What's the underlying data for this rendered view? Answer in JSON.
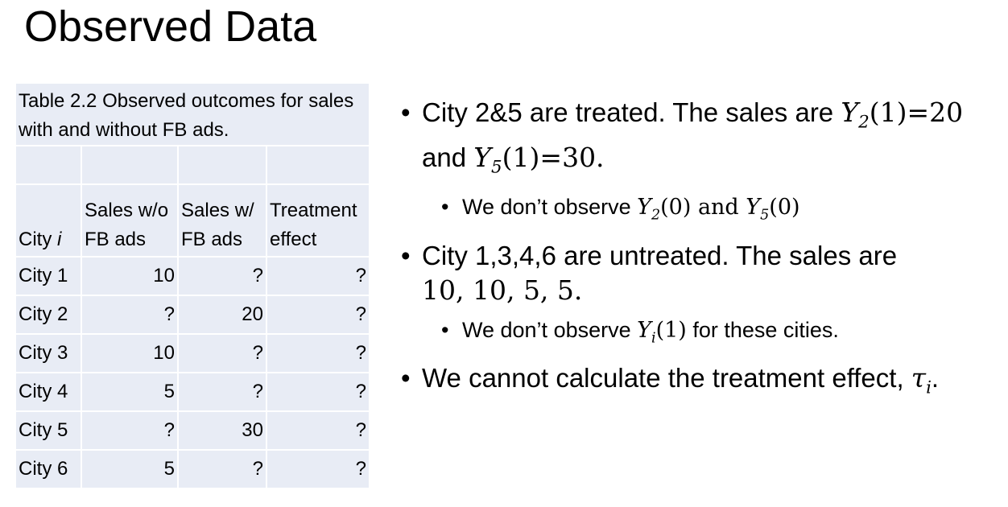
{
  "title": "Observed Data",
  "table": {
    "caption": "Table 2.2 Observed outcomes for sales with and without FB ads.",
    "header": {
      "city_label": "City",
      "city_index": "i",
      "col2": "Sales w/o FB ads",
      "col3": "Sales w/ FB ads",
      "col4": "Treatment effect"
    },
    "rows": [
      {
        "city": "City 1",
        "without": "10",
        "with": "?",
        "effect": "?"
      },
      {
        "city": "City 2",
        "without": "?",
        "with": "20",
        "effect": "?"
      },
      {
        "city": "City 3",
        "without": "10",
        "with": "?",
        "effect": "?"
      },
      {
        "city": "City 4",
        "without": "5",
        "with": "?",
        "effect": "?"
      },
      {
        "city": "City 5",
        "without": "?",
        "with": "30",
        "effect": "?"
      },
      {
        "city": "City 6",
        "without": "5",
        "with": "?",
        "effect": "?"
      }
    ]
  },
  "bullets": {
    "b1_text": "City 2&5 are treated. The sales are ",
    "b1_y2": "Y",
    "b1_y2_sub": "2",
    "b1_y2_val": "(1)=20",
    "b1_and": "and ",
    "b1_y5": "Y",
    "b1_y5_sub": "5",
    "b1_y5_val": "(1)=30.",
    "b1a_text": "We don’t observe ",
    "b1a_y2": "Y",
    "b1a_y2_sub": "2",
    "b1a_y2_arg": "(0)",
    "b1a_and": " and ",
    "b1a_y5": "Y",
    "b1a_y5_sub": "5",
    "b1a_y5_arg": "(0)",
    "b2_text": "City 1,3,4,6 are untreated. The sales are",
    "b2_values": "10, 10, 5, 5.",
    "b2a_text": "We don’t observe ",
    "b2a_y": "Y",
    "b2a_y_sub": "i",
    "b2a_y_arg": "(1)",
    "b2a_tail": " for these cities.",
    "b3_text": "We cannot calculate the treatment effect, ",
    "b3_tau": "τ",
    "b3_tau_sub": "i",
    "b3_end": "."
  }
}
